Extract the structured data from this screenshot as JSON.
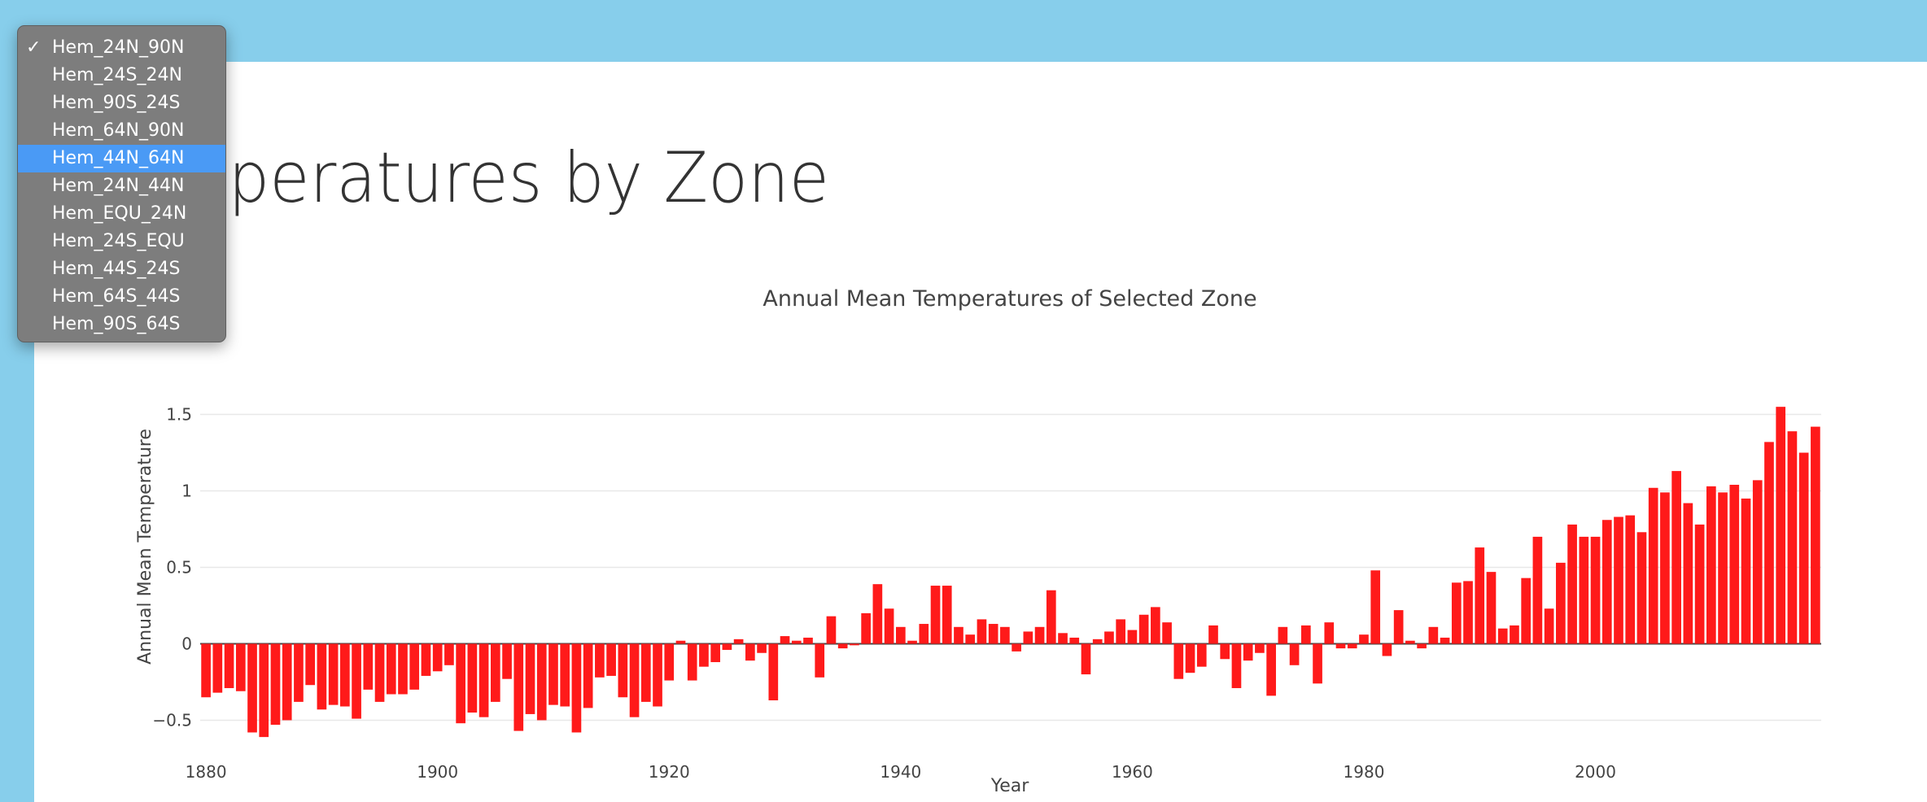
{
  "page": {
    "title": "n Temperatures by Zone"
  },
  "dropdown": {
    "checked": "Hem_24N_90N",
    "highlighted": "Hem_44N_64N",
    "options": [
      "Hem_24N_90N",
      "Hem_24S_24N",
      "Hem_90S_24S",
      "Hem_64N_90N",
      "Hem_44N_64N",
      "Hem_24N_44N",
      "Hem_EQU_24N",
      "Hem_24S_EQU",
      "Hem_44S_24S",
      "Hem_64S_44S",
      "Hem_90S_64S"
    ],
    "check_icon": "checkmark-icon"
  },
  "colors": {
    "page_background": "#87ceeb",
    "bar": "#ff1a1a",
    "highlight": "#4a9af5",
    "menu_background": "#7d7d7d"
  },
  "chart_data": {
    "type": "bar",
    "title": "Annual Mean Temperatures of Selected Zone",
    "xlabel": "Year",
    "ylabel": "Annual Mean Temperature",
    "xlim": [
      1879.5,
      2019.5
    ],
    "ylim": [
      -0.62,
      1.62
    ],
    "xticks": [
      1880,
      1900,
      1920,
      1940,
      1960,
      1980,
      2000
    ],
    "yticks": [
      -0.5,
      0,
      0.5,
      1,
      1.5
    ],
    "ytick_labels": [
      "−0.5",
      "0",
      "0.5",
      "1",
      "1.5"
    ],
    "grid": true,
    "start_year": 1880,
    "values": [
      -0.35,
      -0.32,
      -0.29,
      -0.31,
      -0.58,
      -0.61,
      -0.53,
      -0.5,
      -0.38,
      -0.27,
      -0.43,
      -0.4,
      -0.41,
      -0.49,
      -0.3,
      -0.38,
      -0.33,
      -0.33,
      -0.3,
      -0.21,
      -0.18,
      -0.14,
      -0.52,
      -0.45,
      -0.48,
      -0.38,
      -0.23,
      -0.57,
      -0.46,
      -0.5,
      -0.4,
      -0.41,
      -0.58,
      -0.42,
      -0.22,
      -0.21,
      -0.35,
      -0.48,
      -0.38,
      -0.41,
      -0.24,
      0.02,
      -0.24,
      -0.15,
      -0.12,
      -0.04,
      0.03,
      -0.11,
      -0.06,
      -0.37,
      0.05,
      0.02,
      0.04,
      -0.22,
      0.18,
      -0.03,
      -0.01,
      0.2,
      0.39,
      0.23,
      0.11,
      0.02,
      0.13,
      0.38,
      0.38,
      0.11,
      0.06,
      0.16,
      0.13,
      0.11,
      -0.05,
      0.08,
      0.11,
      0.35,
      0.07,
      0.04,
      -0.2,
      0.03,
      0.08,
      0.16,
      0.09,
      0.19,
      0.24,
      0.14,
      -0.23,
      -0.19,
      -0.15,
      0.12,
      -0.1,
      -0.29,
      -0.11,
      -0.06,
      -0.34,
      0.11,
      -0.14,
      0.12,
      -0.26,
      0.14,
      -0.03,
      -0.03,
      0.06,
      0.48,
      -0.08,
      0.22,
      0.02,
      -0.03,
      0.11,
      0.04,
      0.4,
      0.41,
      0.63,
      0.47,
      0.1,
      0.12,
      0.43,
      0.7,
      0.23,
      0.53,
      0.78,
      0.7,
      0.7,
      0.81,
      0.83,
      0.84,
      0.73,
      1.02,
      0.99,
      1.13,
      0.92,
      0.78,
      1.03,
      0.99,
      1.04,
      0.95,
      1.07,
      1.32,
      1.55,
      1.39,
      1.25,
      1.42
    ]
  }
}
